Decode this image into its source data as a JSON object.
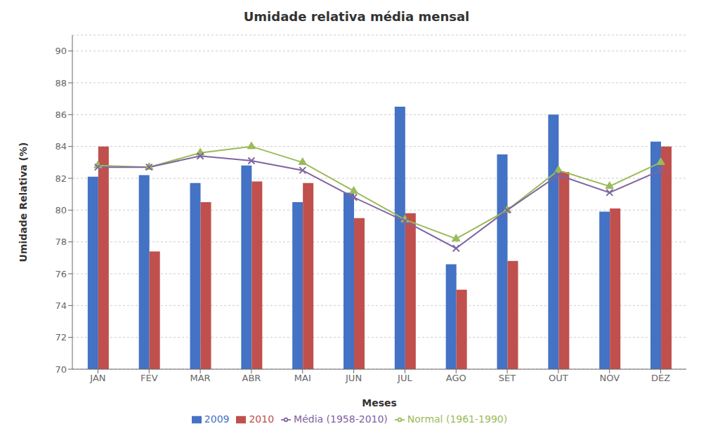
{
  "chart_data": {
    "type": "bar",
    "title": "Umidade relativa  média mensal",
    "xlabel": "Meses",
    "ylabel": "Umidade Relativa (%)",
    "categories": [
      "JAN",
      "FEV",
      "MAR",
      "ABR",
      "MAI",
      "JUN",
      "JUL",
      "AGO",
      "SET",
      "OUT",
      "NOV",
      "DEZ"
    ],
    "series": [
      {
        "name": "2009",
        "type": "bar",
        "color": "#4472C4",
        "values": [
          82.1,
          82.2,
          81.7,
          82.8,
          80.5,
          81.1,
          86.5,
          76.6,
          83.5,
          86.0,
          79.9,
          84.3
        ]
      },
      {
        "name": "2010",
        "type": "bar",
        "color": "#C0504D",
        "values": [
          84.0,
          77.4,
          80.5,
          81.8,
          81.7,
          79.5,
          79.8,
          75.0,
          76.8,
          82.4,
          80.1,
          84.0
        ]
      },
      {
        "name": "Normal (1961-1990)",
        "type": "line",
        "color": "#9BBB59",
        "marker": "triangle",
        "values": [
          82.8,
          82.7,
          83.6,
          84.0,
          83.0,
          81.2,
          79.4,
          78.2,
          80.0,
          82.5,
          81.5,
          83.0
        ]
      },
      {
        "name": "Média (1958-2010)",
        "type": "line",
        "color": "#8064A2",
        "marker": "x",
        "values": [
          82.7,
          82.7,
          83.4,
          83.1,
          82.5,
          80.8,
          79.3,
          77.6,
          80.0,
          82.2,
          81.1,
          82.5
        ]
      }
    ],
    "ylim": [
      70,
      91
    ],
    "yticks": [
      70,
      72,
      74,
      76,
      78,
      80,
      82,
      84,
      86,
      88,
      90
    ],
    "grid": true,
    "legend": "bottom"
  }
}
